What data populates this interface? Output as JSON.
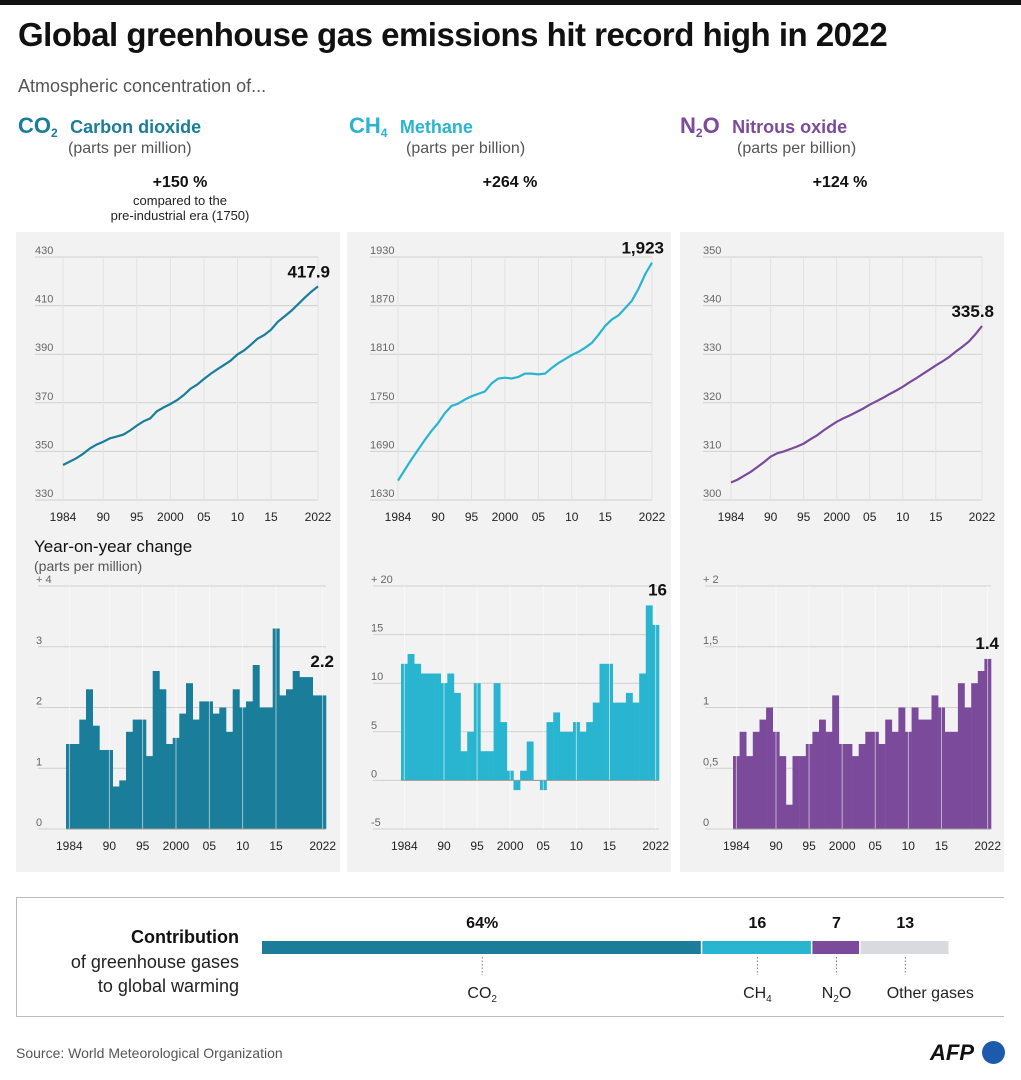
{
  "header": {
    "title": "Global greenhouse gas emissions hit record high in 2022",
    "subtitle": "Atmospheric concentration of..."
  },
  "colors": {
    "co2": "#1a7d99",
    "ch4": "#29b5cf",
    "n2o": "#7c4a9a",
    "other": "#d8dae0",
    "panel": "#f2f2f2"
  },
  "gases": [
    {
      "formula": "CO",
      "sub": "2",
      "name": "Carbon dioxide",
      "unit": "(parts per million)",
      "pct": "+150 %",
      "note1": "compared to the",
      "note2": "pre-industrial era (1750)"
    },
    {
      "formula": "CH",
      "sub": "4",
      "name": "Methane",
      "unit": "(parts per billion)",
      "pct": "+264 %"
    },
    {
      "formula": "N",
      "sub": "2",
      "formula2": "O",
      "name": "Nitrous oxide",
      "unit": "(parts per billion)",
      "pct": "+124 %"
    }
  ],
  "yoy": {
    "title": "Year-on-year change",
    "unit": "(parts per million)"
  },
  "x_ticks": [
    "1984",
    "90",
    "95",
    "2000",
    "05",
    "10",
    "15",
    "2022"
  ],
  "chart_data": [
    {
      "type": "line",
      "title": "CO2 concentration",
      "ylim": [
        330,
        430
      ],
      "yticks": [
        "430",
        "410",
        "390",
        "370",
        "350",
        "330"
      ],
      "end_label": "417.9",
      "x": [
        1984,
        1985,
        1986,
        1987,
        1988,
        1989,
        1990,
        1991,
        1992,
        1993,
        1994,
        1995,
        1996,
        1997,
        1998,
        1999,
        2000,
        2001,
        2002,
        2003,
        2004,
        2005,
        2006,
        2007,
        2008,
        2009,
        2010,
        2011,
        2012,
        2013,
        2014,
        2015,
        2016,
        2017,
        2018,
        2019,
        2020,
        2021,
        2022
      ],
      "values": [
        344.4,
        345.8,
        347.2,
        349.0,
        351.2,
        352.8,
        354.0,
        355.4,
        356.1,
        356.9,
        358.6,
        360.6,
        362.4,
        363.6,
        366.5,
        368.1,
        369.5,
        371.1,
        373.2,
        375.8,
        377.5,
        379.8,
        381.9,
        383.8,
        385.6,
        387.4,
        389.9,
        391.6,
        393.9,
        396.4,
        397.9,
        400.1,
        403.3,
        405.5,
        407.8,
        410.5,
        413.2,
        415.7,
        417.9
      ]
    },
    {
      "type": "line",
      "title": "CH4 concentration",
      "ylim": [
        1630,
        1930
      ],
      "yticks": [
        "1930",
        "1870",
        "1810",
        "1750",
        "1690",
        "1630"
      ],
      "end_label": "1,923",
      "x": [
        1984,
        1985,
        1986,
        1987,
        1988,
        1989,
        1990,
        1991,
        1992,
        1993,
        1994,
        1995,
        1996,
        1997,
        1998,
        1999,
        2000,
        2001,
        2002,
        2003,
        2004,
        2005,
        2006,
        2007,
        2008,
        2009,
        2010,
        2011,
        2012,
        2013,
        2014,
        2015,
        2016,
        2017,
        2018,
        2019,
        2020,
        2021,
        2022
      ],
      "values": [
        1654,
        1667,
        1680,
        1692,
        1704,
        1715,
        1725,
        1737,
        1746,
        1749,
        1754,
        1758,
        1761,
        1764,
        1774,
        1780,
        1781,
        1780,
        1782,
        1786,
        1786,
        1785,
        1786,
        1793,
        1799,
        1804,
        1809,
        1813,
        1818,
        1824,
        1834,
        1845,
        1853,
        1858,
        1867,
        1876,
        1891,
        1909,
        1923
      ]
    },
    {
      "type": "line",
      "title": "N2O concentration",
      "ylim": [
        300,
        350
      ],
      "yticks": [
        "350",
        "340",
        "330",
        "320",
        "310",
        "300"
      ],
      "end_label": "335.8",
      "x": [
        1984,
        1985,
        1986,
        1987,
        1988,
        1989,
        1990,
        1991,
        1992,
        1993,
        1994,
        1995,
        1996,
        1997,
        1998,
        1999,
        2000,
        2001,
        2002,
        2003,
        2004,
        2005,
        2006,
        2007,
        2008,
        2009,
        2010,
        2011,
        2012,
        2013,
        2014,
        2015,
        2016,
        2017,
        2018,
        2019,
        2020,
        2021,
        2022
      ],
      "values": [
        303.6,
        304.2,
        305.0,
        305.8,
        306.8,
        307.8,
        308.9,
        309.6,
        310.0,
        310.5,
        311.0,
        311.6,
        312.5,
        313.3,
        314.3,
        315.2,
        316.1,
        316.8,
        317.4,
        318.1,
        318.8,
        319.6,
        320.3,
        321.0,
        321.8,
        322.5,
        323.3,
        324.2,
        325.0,
        325.9,
        326.8,
        327.7,
        328.5,
        329.4,
        330.5,
        331.5,
        332.6,
        334.1,
        335.8
      ]
    },
    {
      "type": "bar",
      "title": "CO2 year-on-year change",
      "ylim": [
        0,
        4
      ],
      "yticks": [
        "+ 4",
        "3",
        "2",
        "1",
        "0"
      ],
      "end_label": "2.2",
      "x": [
        1984,
        1985,
        1986,
        1987,
        1988,
        1989,
        1990,
        1991,
        1992,
        1993,
        1994,
        1995,
        1996,
        1997,
        1998,
        1999,
        2000,
        2001,
        2002,
        2003,
        2004,
        2005,
        2006,
        2007,
        2008,
        2009,
        2010,
        2011,
        2012,
        2013,
        2014,
        2015,
        2016,
        2017,
        2018,
        2019,
        2020,
        2021,
        2022
      ],
      "values": [
        1.4,
        1.4,
        1.8,
        2.3,
        1.7,
        1.3,
        1.3,
        0.7,
        0.8,
        1.6,
        1.8,
        1.8,
        1.2,
        2.6,
        2.3,
        1.4,
        1.5,
        1.9,
        2.4,
        1.8,
        2.1,
        2.1,
        1.9,
        2.0,
        1.6,
        2.3,
        2.0,
        2.1,
        2.7,
        2.0,
        2.0,
        3.3,
        2.2,
        2.3,
        2.6,
        2.5,
        2.5,
        2.2,
        2.2
      ]
    },
    {
      "type": "bar",
      "title": "CH4 year-on-year change",
      "ylim": [
        -5,
        20
      ],
      "yticks": [
        "+ 20",
        "15",
        "10",
        "5",
        "0",
        "-5"
      ],
      "end_label": "16",
      "x": [
        1984,
        1985,
        1986,
        1987,
        1988,
        1989,
        1990,
        1991,
        1992,
        1993,
        1994,
        1995,
        1996,
        1997,
        1998,
        1999,
        2000,
        2001,
        2002,
        2003,
        2004,
        2005,
        2006,
        2007,
        2008,
        2009,
        2010,
        2011,
        2012,
        2013,
        2014,
        2015,
        2016,
        2017,
        2018,
        2019,
        2020,
        2021,
        2022
      ],
      "values": [
        12,
        13,
        12,
        11,
        11,
        11,
        10,
        11,
        9,
        3,
        5,
        10,
        3,
        3,
        10,
        6,
        1,
        -1,
        1,
        4,
        0,
        -1,
        6,
        7,
        5,
        5,
        6,
        5,
        6,
        8,
        12,
        12,
        8,
        8,
        9,
        8,
        11,
        18,
        16
      ]
    },
    {
      "type": "bar",
      "title": "N2O year-on-year change",
      "ylim": [
        0,
        2
      ],
      "yticks": [
        "+ 2",
        "1,5",
        "1",
        "0,5",
        "0"
      ],
      "end_label": "1.4",
      "x": [
        1984,
        1985,
        1986,
        1987,
        1988,
        1989,
        1990,
        1991,
        1992,
        1993,
        1994,
        1995,
        1996,
        1997,
        1998,
        1999,
        2000,
        2001,
        2002,
        2003,
        2004,
        2005,
        2006,
        2007,
        2008,
        2009,
        2010,
        2011,
        2012,
        2013,
        2014,
        2015,
        2016,
        2017,
        2018,
        2019,
        2020,
        2021,
        2022
      ],
      "values": [
        0.6,
        0.8,
        0.6,
        0.8,
        0.9,
        1.0,
        0.8,
        0.6,
        0.2,
        0.6,
        0.6,
        0.7,
        0.8,
        0.9,
        0.8,
        1.1,
        0.7,
        0.7,
        0.6,
        0.7,
        0.8,
        0.8,
        0.7,
        0.9,
        0.8,
        1.0,
        0.8,
        1.0,
        0.9,
        0.9,
        1.1,
        1.0,
        0.8,
        0.8,
        1.2,
        1.0,
        1.2,
        1.3,
        1.4
      ]
    },
    {
      "type": "bar",
      "title": "Contribution of greenhouse gases to global warming",
      "categories": [
        "CO2",
        "CH4",
        "N2O",
        "Other gases"
      ],
      "values": [
        64,
        16,
        7,
        13
      ],
      "labels": [
        "64%",
        "16",
        "7",
        "13"
      ]
    }
  ],
  "contribution": {
    "title": "Contribution",
    "sub1": "of greenhouse gases",
    "sub2": "to global warming",
    "other_label": "Other gases"
  },
  "footer": {
    "source": "Source: World Meteorological Organization",
    "logo": "AFP"
  }
}
